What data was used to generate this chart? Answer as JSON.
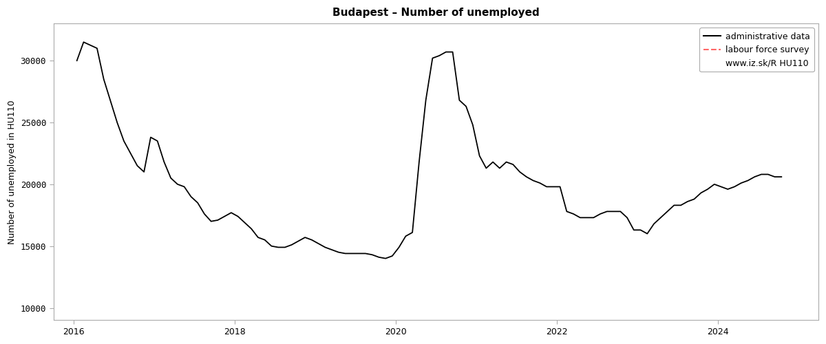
{
  "title": "Budapest – Number of unemployed",
  "ylabel": "Number of unemployed in HU110",
  "line_color": "#000000",
  "lfs_color": "#ff6666",
  "background_color": "#ffffff",
  "plot_bg_color": "#ffffff",
  "ylim": [
    9000,
    33000
  ],
  "yticks": [
    10000,
    15000,
    20000,
    25000,
    30000
  ],
  "ytick_labels": [
    "10000",
    "15000",
    "20000",
    "25000",
    "30000"
  ],
  "xlim": [
    2015.75,
    2025.25
  ],
  "xtick_years": [
    2016,
    2018,
    2020,
    2022,
    2024
  ],
  "legend_line1": "administrative data",
  "legend_line2": "labour force survey",
  "legend_line3": "www.iz.sk/R HU110",
  "admin_data": {
    "dates_decimal": [
      2016.0417,
      2016.125,
      2016.2917,
      2016.375,
      2016.5417,
      2016.625,
      2016.7083,
      2016.7917,
      2016.875,
      2016.9583,
      2017.0417,
      2017.125,
      2017.2083,
      2017.2917,
      2017.375,
      2017.4583,
      2017.5417,
      2017.625,
      2017.7083,
      2017.7917,
      2017.875,
      2017.9583,
      2018.0417,
      2018.125,
      2018.2083,
      2018.2917,
      2018.375,
      2018.4583,
      2018.5417,
      2018.625,
      2018.7083,
      2018.7917,
      2018.875,
      2018.9583,
      2019.0417,
      2019.125,
      2019.2083,
      2019.2917,
      2019.375,
      2019.4583,
      2019.5417,
      2019.625,
      2019.7083,
      2019.7917,
      2019.875,
      2019.9583,
      2020.0417,
      2020.125,
      2020.2083,
      2020.2917,
      2020.375,
      2020.4583,
      2020.5417,
      2020.625,
      2020.7083,
      2020.7917,
      2020.875,
      2020.9583,
      2021.0417,
      2021.125,
      2021.2083,
      2021.2917,
      2021.375,
      2021.4583,
      2021.5417,
      2021.625,
      2021.7083,
      2021.7917,
      2021.875,
      2021.9583,
      2022.0417,
      2022.125,
      2022.2083,
      2022.2917,
      2022.375,
      2022.4583,
      2022.5417,
      2022.625,
      2022.7083,
      2022.7917,
      2022.875,
      2022.9583,
      2023.0417,
      2023.125,
      2023.2083,
      2023.2917,
      2023.375,
      2023.4583,
      2023.5417,
      2023.625,
      2023.7083,
      2023.7917,
      2023.875,
      2023.9583,
      2024.0417,
      2024.125,
      2024.2083,
      2024.2917,
      2024.375,
      2024.4583,
      2024.5417,
      2024.625,
      2024.7083,
      2024.7917
    ],
    "values": [
      30000,
      31500,
      31000,
      28500,
      25000,
      23500,
      22500,
      21500,
      21000,
      23800,
      23500,
      21800,
      20500,
      20000,
      19800,
      19000,
      18500,
      17600,
      17000,
      17100,
      17400,
      17700,
      17400,
      16900,
      16400,
      15700,
      15500,
      15000,
      14900,
      14900,
      15100,
      15400,
      15700,
      15500,
      15200,
      14900,
      14700,
      14500,
      14400,
      14400,
      14400,
      14400,
      14300,
      14100,
      14000,
      14200,
      14900,
      15800,
      16100,
      21800,
      26800,
      30200,
      30400,
      30700,
      30700,
      26800,
      26300,
      24800,
      22300,
      21300,
      21800,
      21300,
      21800,
      21600,
      21000,
      20600,
      20300,
      20100,
      19800,
      19800,
      19800,
      17800,
      17600,
      17300,
      17300,
      17300,
      17600,
      17800,
      17800,
      17800,
      17300,
      16300,
      16300,
      16000,
      16800,
      17300,
      17800,
      18300,
      18300,
      18600,
      18800,
      19300,
      19600,
      20000,
      19800,
      19600,
      19800,
      20100,
      20300,
      20600,
      20800,
      20800,
      20600,
      20600
    ]
  }
}
